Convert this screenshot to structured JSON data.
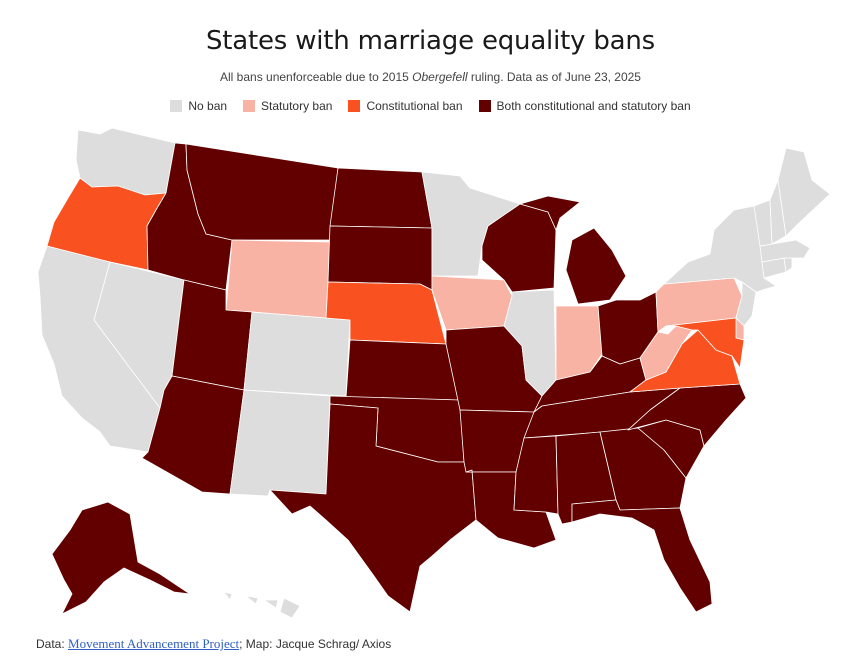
{
  "title": "States with marriage equality bans",
  "subtitle": {
    "prefix": "All bans unenforceable due to 2015 ",
    "case": "Obergefell",
    "suffix": " ruling. Data as of June 23, 2025"
  },
  "legend": [
    {
      "label": "No ban",
      "color": "#dddddd"
    },
    {
      "label": "Statutory ban",
      "color": "#f9b3a4"
    },
    {
      "label": "Constitutional ban",
      "color": "#f95120"
    },
    {
      "label": "Both constitutional and statutory ban",
      "color": "#620000"
    }
  ],
  "source": {
    "prefix": "Data: ",
    "link_text": "Movement Advancement Project",
    "suffix": "; Map: Jacque Schrag/ Axios"
  },
  "categories": {
    "no_ban": [
      "WA",
      "CA",
      "NV",
      "CO",
      "NM",
      "MN",
      "IL",
      "NY",
      "VT",
      "NH",
      "ME",
      "MA",
      "CT",
      "RI",
      "NJ",
      "HI"
    ],
    "statutory": [
      "WY",
      "IA",
      "IN",
      "PA",
      "WV",
      "DE"
    ],
    "constitutional": [
      "OR",
      "NE",
      "VA",
      "MD"
    ],
    "both": [
      "MT",
      "ID",
      "UT",
      "AZ",
      "ND",
      "SD",
      "KS",
      "OK",
      "TX",
      "MO",
      "AR",
      "LA",
      "WI",
      "MI",
      "OH",
      "KY",
      "TN",
      "MS",
      "AL",
      "GA",
      "FL",
      "SC",
      "NC",
      "AK"
    ]
  }
}
